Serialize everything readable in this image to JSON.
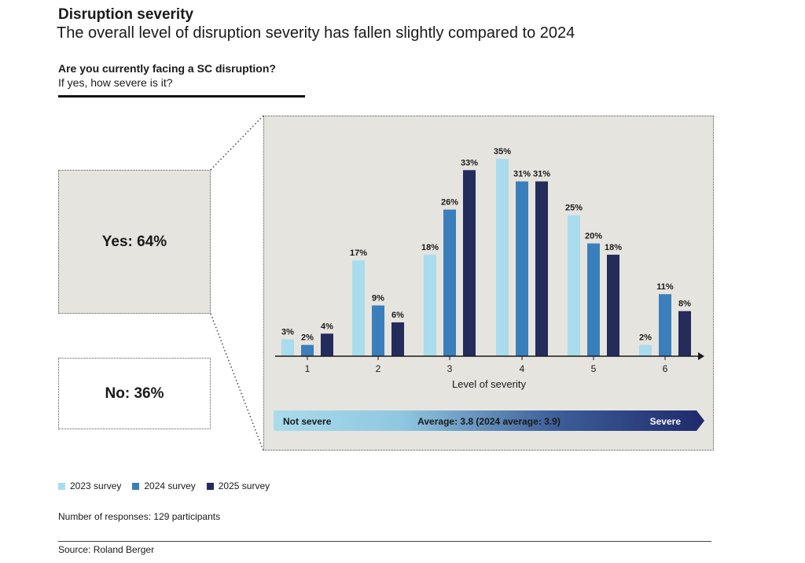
{
  "header": {
    "title": "Disruption severity",
    "subtitle": "The overall level of disruption severity has fallen slightly compared to 2024"
  },
  "question": {
    "main": "Are you currently facing a SC disruption?",
    "sub": "If yes, how severe is it?"
  },
  "answers": {
    "yes": "Yes: 64%",
    "no": "No: 36%"
  },
  "chart_data": {
    "type": "bar",
    "categories": [
      "1",
      "2",
      "3",
      "4",
      "5",
      "6"
    ],
    "series": [
      {
        "name": "2023 survey",
        "color": "#a9dcec",
        "values": [
          3,
          17,
          18,
          35,
          25,
          2
        ]
      },
      {
        "name": "2024 survey",
        "color": "#3a7fbb",
        "values": [
          2,
          9,
          26,
          31,
          20,
          11
        ]
      },
      {
        "name": "2025 survey",
        "color": "#242c5c",
        "values": [
          4,
          6,
          33,
          31,
          18,
          8
        ]
      }
    ],
    "value_suffix": "%",
    "xlabel": "Level of severity",
    "ylim": [
      0,
      35
    ],
    "scale": {
      "left_label": "Not severe",
      "center_label": "Average: 3.8 (2024 average: 3.9)",
      "right_label": "Severe"
    }
  },
  "legend": [
    "2023 survey",
    "2024 survey",
    "2025 survey"
  ],
  "responses": "Number of responses: 129 participants",
  "source": "Source: Roland Berger"
}
